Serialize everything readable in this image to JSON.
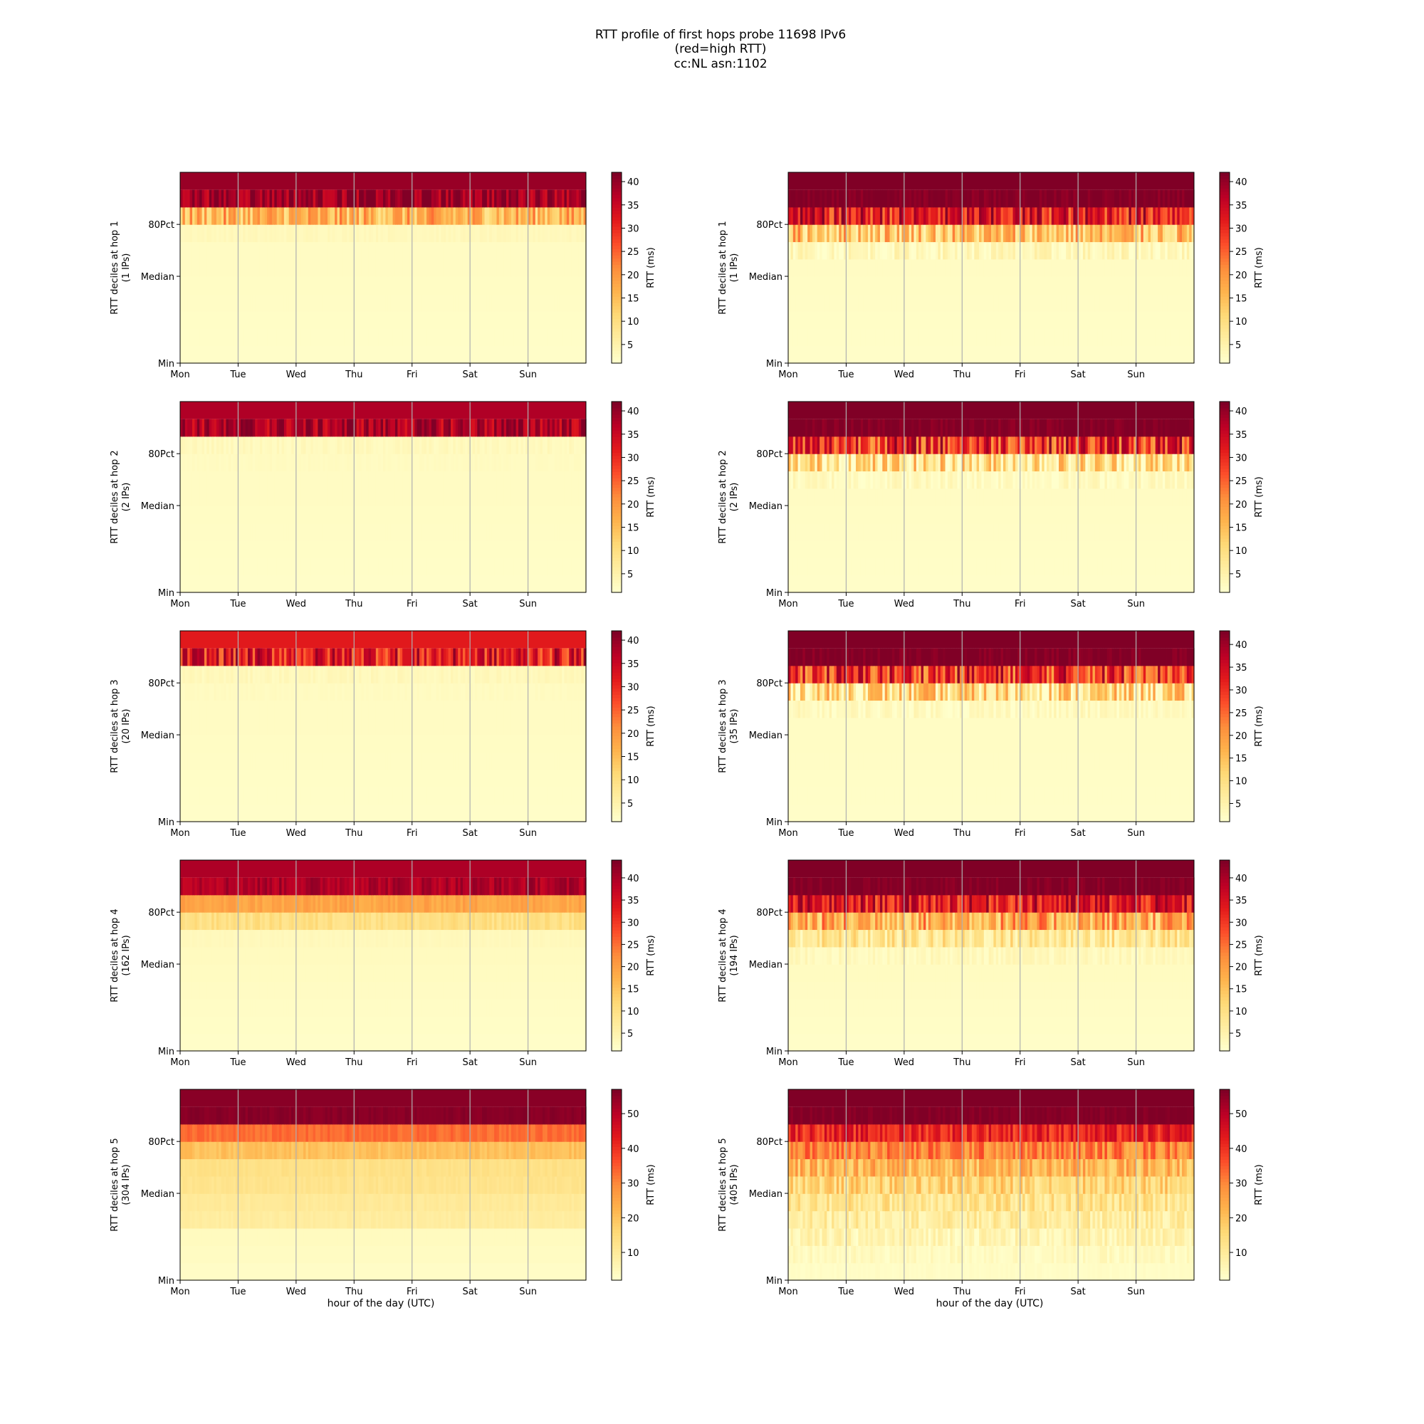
{
  "figure": {
    "title_lines": [
      "RTT profile of first hops probe 11698 IPv6",
      "(red=high RTT)",
      "cc:NL asn:1102"
    ],
    "xlabel": "hour of the day (UTC)"
  },
  "colormap": [
    "#ffffcc",
    "#ffeda0",
    "#fed976",
    "#feb24c",
    "#fd8d3c",
    "#fc4e2a",
    "#e31a1c",
    "#bd0026",
    "#800026"
  ],
  "chart_data": [
    {
      "type": "heatmap",
      "hop": 1,
      "ylabel": "RTT deciles at hop 1",
      "ips": "(1 IPs)",
      "x_ticks": [
        "Mon",
        "Tue",
        "Wed",
        "Thu",
        "Fri",
        "Sat",
        "Sun"
      ],
      "y_ticks": [
        "Min",
        "Median",
        "80Pct"
      ],
      "colorbar_label": "RTT (ms)",
      "colorbar_ticks": [
        5,
        10,
        15,
        20,
        25,
        30,
        35,
        40
      ],
      "vmin": 1,
      "vmax": 42,
      "decile_profile": [
        1.5,
        1.6,
        1.7,
        1.8,
        1.9,
        2.0,
        2.1,
        3.0,
        16,
        40
      ],
      "variability": [
        0,
        0,
        0,
        0,
        0,
        0,
        0,
        0.5,
        8,
        6
      ],
      "grid": true
    },
    {
      "type": "heatmap",
      "hop": 2,
      "ylabel": "RTT deciles at hop 2",
      "ips": "(2 IPs)",
      "x_ticks": [
        "Mon",
        "Tue",
        "Wed",
        "Thu",
        "Fri",
        "Sat",
        "Sun"
      ],
      "y_ticks": [
        "Min",
        "Median",
        "80Pct"
      ],
      "colorbar_label": "RTT (ms)",
      "colorbar_ticks": [
        5,
        10,
        15,
        20,
        25,
        30,
        35,
        40
      ],
      "vmin": 1,
      "vmax": 42,
      "decile_profile": [
        1.5,
        1.6,
        1.7,
        1.8,
        1.9,
        2.0,
        2.1,
        2.3,
        2.8,
        38
      ],
      "variability": [
        0,
        0,
        0,
        0,
        0,
        0,
        0,
        0.3,
        0.8,
        6
      ],
      "grid": true
    },
    {
      "type": "heatmap",
      "hop": 3,
      "ylabel": "RTT deciles at hop 3",
      "ips": "(20 IPs)",
      "x_ticks": [
        "Mon",
        "Tue",
        "Wed",
        "Thu",
        "Fri",
        "Sat",
        "Sun"
      ],
      "y_ticks": [
        "Min",
        "Median",
        "80Pct"
      ],
      "colorbar_label": "RTT (ms)",
      "colorbar_ticks": [
        5,
        10,
        15,
        20,
        25,
        30,
        35,
        40
      ],
      "vmin": 1,
      "vmax": 42,
      "decile_profile": [
        1.5,
        1.6,
        1.7,
        1.8,
        1.9,
        2.0,
        2.1,
        2.3,
        3.0,
        32
      ],
      "variability": [
        0,
        0,
        0,
        0,
        0,
        0,
        0,
        0.3,
        0.8,
        9
      ],
      "grid": true
    },
    {
      "type": "heatmap",
      "hop": 4,
      "ylabel": "RTT deciles at hop 4",
      "ips": "(162 IPs)",
      "x_ticks": [
        "Mon",
        "Tue",
        "Wed",
        "Thu",
        "Fri",
        "Sat",
        "Sun"
      ],
      "y_ticks": [
        "Min",
        "Median",
        "80Pct"
      ],
      "colorbar_label": "RTT (ms)",
      "colorbar_ticks": [
        5,
        10,
        15,
        20,
        25,
        30,
        35,
        40
      ],
      "vmin": 1,
      "vmax": 44,
      "decile_profile": [
        1.5,
        1.7,
        1.9,
        2.1,
        2.3,
        2.6,
        3.0,
        10,
        19,
        40
      ],
      "variability": [
        0,
        0,
        0,
        0,
        0,
        0,
        0.3,
        2,
        2,
        3
      ],
      "grid": true
    },
    {
      "type": "heatmap",
      "hop": 5,
      "ylabel": "RTT deciles at hop 5",
      "ips": "(304 IPs)",
      "x_ticks": [
        "Mon",
        "Tue",
        "Wed",
        "Thu",
        "Fri",
        "Sat",
        "Sun"
      ],
      "y_ticks": [
        "Min",
        "Median",
        "80Pct"
      ],
      "colorbar_label": "RTT (ms)",
      "colorbar_ticks": [
        10,
        20,
        30,
        40,
        50
      ],
      "vmin": 2,
      "vmax": 57,
      "decile_profile": [
        3,
        3.5,
        4,
        9,
        10,
        12,
        13,
        20,
        33,
        56
      ],
      "variability": [
        0,
        0,
        0,
        0.8,
        0.8,
        1,
        1,
        2,
        2,
        1
      ],
      "grid": true
    },
    {
      "type": "heatmap",
      "hop": 1,
      "ylabel": "RTT deciles at hop 1",
      "ips": "(1 IPs)",
      "x_ticks": [
        "Mon",
        "Tue",
        "Wed",
        "Thu",
        "Fri",
        "Sat",
        "Sun"
      ],
      "y_ticks": [
        "Min",
        "Median",
        "80Pct"
      ],
      "colorbar_label": "RTT (ms)",
      "colorbar_ticks": [
        5,
        10,
        15,
        20,
        25,
        30,
        35,
        40
      ],
      "vmin": 1,
      "vmax": 42,
      "decile_profile": [
        1.5,
        1.6,
        1.7,
        1.8,
        1.9,
        2.0,
        3,
        14,
        32,
        42
      ],
      "variability": [
        0,
        0,
        0,
        0,
        0,
        0,
        3,
        10,
        10,
        2
      ],
      "grid": true
    },
    {
      "type": "heatmap",
      "hop": 2,
      "ylabel": "RTT deciles at hop 2",
      "ips": "(2 IPs)",
      "x_ticks": [
        "Mon",
        "Tue",
        "Wed",
        "Thu",
        "Fri",
        "Sat",
        "Sun"
      ],
      "y_ticks": [
        "Min",
        "Median",
        "80Pct"
      ],
      "colorbar_label": "RTT (ms)",
      "colorbar_ticks": [
        5,
        10,
        15,
        20,
        25,
        30,
        35,
        40
      ],
      "vmin": 1,
      "vmax": 42,
      "decile_profile": [
        1.5,
        1.6,
        1.7,
        1.8,
        1.9,
        2.0,
        2.5,
        9,
        30,
        42
      ],
      "variability": [
        0,
        0,
        0,
        0,
        0,
        0,
        2,
        11,
        12,
        2
      ],
      "grid": true
    },
    {
      "type": "heatmap",
      "hop": 3,
      "ylabel": "RTT deciles at hop 3",
      "ips": "(35 IPs)",
      "x_ticks": [
        "Mon",
        "Tue",
        "Wed",
        "Thu",
        "Fri",
        "Sat",
        "Sun"
      ],
      "y_ticks": [
        "Min",
        "Median",
        "80Pct"
      ],
      "colorbar_label": "RTT (ms)",
      "colorbar_ticks": [
        5,
        10,
        15,
        20,
        25,
        30,
        35,
        40
      ],
      "vmin": 1,
      "vmax": 43,
      "decile_profile": [
        1.5,
        1.6,
        1.7,
        1.8,
        1.9,
        2.0,
        2.5,
        10,
        30,
        43
      ],
      "variability": [
        0,
        0,
        0,
        0,
        0,
        0,
        2,
        11,
        12,
        2
      ],
      "grid": true
    },
    {
      "type": "heatmap",
      "hop": 4,
      "ylabel": "RTT deciles at hop 4",
      "ips": "(194 IPs)",
      "x_ticks": [
        "Mon",
        "Tue",
        "Wed",
        "Thu",
        "Fri",
        "Sat",
        "Sun"
      ],
      "y_ticks": [
        "Min",
        "Median",
        "80Pct"
      ],
      "colorbar_label": "RTT (ms)",
      "colorbar_ticks": [
        5,
        10,
        15,
        20,
        25,
        30,
        35,
        40
      ],
      "vmin": 1,
      "vmax": 44,
      "decile_profile": [
        1.5,
        1.7,
        1.9,
        2.1,
        2.3,
        3,
        8,
        18,
        34,
        44
      ],
      "variability": [
        0,
        0,
        0,
        0,
        0,
        1.5,
        6,
        10,
        9,
        2
      ],
      "grid": true
    },
    {
      "type": "heatmap",
      "hop": 5,
      "ylabel": "RTT deciles at hop 5",
      "ips": "(405 IPs)",
      "x_ticks": [
        "Mon",
        "Tue",
        "Wed",
        "Thu",
        "Fri",
        "Sat",
        "Sun"
      ],
      "y_ticks": [
        "Min",
        "Median",
        "80Pct"
      ],
      "colorbar_label": "RTT (ms)",
      "colorbar_ticks": [
        10,
        20,
        30,
        40,
        50
      ],
      "vmin": 2,
      "vmax": 57,
      "decile_profile": [
        3,
        4,
        6,
        9,
        12,
        16,
        22,
        30,
        42,
        57
      ],
      "variability": [
        0.5,
        2,
        4,
        5,
        6,
        7,
        8,
        8,
        7,
        2
      ],
      "grid": true
    }
  ]
}
